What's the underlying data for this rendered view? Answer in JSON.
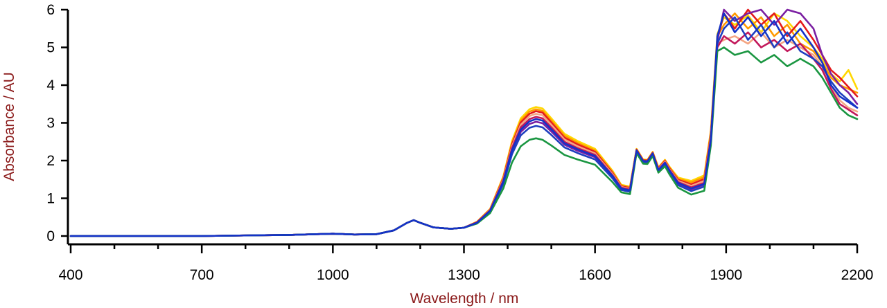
{
  "chart_data": {
    "type": "line",
    "xlabel": "Wavelength / nm",
    "ylabel": "Absorbance / AU",
    "xlim": [
      400,
      2200
    ],
    "ylim": [
      0,
      6
    ],
    "xticks": [
      400,
      700,
      1000,
      1300,
      1600,
      1900,
      2200
    ],
    "yticks": [
      0,
      1,
      2,
      3,
      4,
      5,
      6
    ],
    "grid": false,
    "legend": "none",
    "axis_title_color": "#8b1a1a",
    "x": [
      400,
      500,
      700,
      900,
      1000,
      1050,
      1100,
      1140,
      1170,
      1185,
      1200,
      1230,
      1270,
      1300,
      1330,
      1360,
      1390,
      1410,
      1430,
      1450,
      1465,
      1480,
      1500,
      1530,
      1560,
      1600,
      1640,
      1660,
      1680,
      1695,
      1710,
      1720,
      1732,
      1745,
      1760,
      1770,
      1790,
      1820,
      1850,
      1865,
      1880,
      1895,
      1920,
      1950,
      1980,
      2010,
      2040,
      2070,
      2100,
      2120,
      2140,
      2160,
      2180,
      2200
    ],
    "series": [
      {
        "color": "#ffd700",
        "values": [
          0.0,
          0.0,
          0.0,
          0.03,
          0.06,
          0.04,
          0.05,
          0.15,
          0.35,
          0.42,
          0.35,
          0.23,
          0.19,
          0.22,
          0.38,
          0.72,
          1.58,
          2.52,
          3.12,
          3.36,
          3.42,
          3.38,
          3.12,
          2.71,
          2.52,
          2.31,
          1.73,
          1.36,
          1.31,
          2.31,
          2.03,
          2.02,
          2.23,
          1.82,
          2.02,
          1.84,
          1.55,
          1.46,
          1.61,
          2.8,
          5.35,
          5.8,
          5.6,
          5.85,
          5.4,
          5.9,
          5.7,
          5.3,
          5.0,
          4.7,
          4.3,
          4.1,
          4.4,
          3.9
        ]
      },
      {
        "color": "#ff9900",
        "values": [
          0.0,
          0.0,
          0.0,
          0.03,
          0.06,
          0.04,
          0.05,
          0.15,
          0.35,
          0.42,
          0.35,
          0.23,
          0.19,
          0.22,
          0.37,
          0.71,
          1.55,
          2.47,
          3.06,
          3.3,
          3.36,
          3.32,
          3.06,
          2.66,
          2.47,
          2.27,
          1.7,
          1.34,
          1.29,
          2.3,
          2.02,
          2.01,
          2.22,
          1.81,
          2.01,
          1.82,
          1.52,
          1.42,
          1.56,
          2.75,
          5.3,
          5.6,
          5.9,
          5.5,
          5.8,
          5.3,
          5.6,
          5.1,
          4.9,
          4.6,
          4.2,
          4.0,
          3.9,
          3.8
        ]
      },
      {
        "color": "#e41a1c",
        "values": [
          0.0,
          0.0,
          0.0,
          0.03,
          0.06,
          0.04,
          0.05,
          0.15,
          0.35,
          0.42,
          0.35,
          0.23,
          0.19,
          0.22,
          0.37,
          0.7,
          1.53,
          2.43,
          3.01,
          3.24,
          3.31,
          3.27,
          3.01,
          2.61,
          2.43,
          2.23,
          1.67,
          1.32,
          1.27,
          2.29,
          2.01,
          2.0,
          2.21,
          1.79,
          1.99,
          1.8,
          1.49,
          1.37,
          1.51,
          2.7,
          5.2,
          5.9,
          5.5,
          6.0,
          5.6,
          5.9,
          5.3,
          5.7,
          5.2,
          4.8,
          4.4,
          4.2,
          3.95,
          3.7
        ]
      },
      {
        "color": "#f4a582",
        "values": [
          0.0,
          0.0,
          0.0,
          0.03,
          0.06,
          0.04,
          0.05,
          0.15,
          0.35,
          0.42,
          0.35,
          0.23,
          0.19,
          0.22,
          0.36,
          0.69,
          1.5,
          2.38,
          2.95,
          3.18,
          3.24,
          3.2,
          2.95,
          2.56,
          2.38,
          2.19,
          1.64,
          1.3,
          1.25,
          2.27,
          1.99,
          1.98,
          2.19,
          1.77,
          1.97,
          1.78,
          1.46,
          1.33,
          1.46,
          2.65,
          5.1,
          5.2,
          5.3,
          5.1,
          5.4,
          5.0,
          5.2,
          5.0,
          4.8,
          4.5,
          4.0,
          3.6,
          3.4,
          3.3
        ]
      },
      {
        "color": "#c2185b",
        "values": [
          0.0,
          0.0,
          0.0,
          0.03,
          0.06,
          0.04,
          0.05,
          0.15,
          0.35,
          0.42,
          0.35,
          0.23,
          0.19,
          0.22,
          0.36,
          0.68,
          1.47,
          2.33,
          2.88,
          3.1,
          3.16,
          3.12,
          2.88,
          2.5,
          2.33,
          2.15,
          1.61,
          1.28,
          1.23,
          2.26,
          1.98,
          1.97,
          2.18,
          1.76,
          1.95,
          1.76,
          1.43,
          1.29,
          1.41,
          2.6,
          5.0,
          5.3,
          5.1,
          5.4,
          5.0,
          5.2,
          4.9,
          5.1,
          4.7,
          4.4,
          3.9,
          3.5,
          3.35,
          3.2
        ]
      },
      {
        "color": "#7b1fa2",
        "values": [
          0.0,
          0.0,
          0.0,
          0.03,
          0.06,
          0.04,
          0.05,
          0.15,
          0.35,
          0.42,
          0.35,
          0.23,
          0.19,
          0.22,
          0.35,
          0.66,
          1.42,
          2.24,
          2.76,
          2.97,
          3.03,
          2.99,
          2.77,
          2.42,
          2.26,
          2.09,
          1.57,
          1.25,
          1.2,
          2.25,
          1.97,
          1.96,
          2.17,
          1.74,
          1.93,
          1.73,
          1.39,
          1.24,
          1.36,
          2.55,
          5.2,
          6.0,
          5.7,
          5.9,
          6.0,
          5.6,
          6.0,
          5.9,
          5.5,
          4.8,
          4.3,
          4.0,
          3.8,
          3.5
        ]
      },
      {
        "color": "#1f3fbf",
        "values": [
          0.0,
          0.0,
          0.0,
          0.03,
          0.06,
          0.04,
          0.05,
          0.15,
          0.35,
          0.42,
          0.35,
          0.23,
          0.19,
          0.22,
          0.35,
          0.65,
          1.38,
          2.17,
          2.67,
          2.87,
          2.92,
          2.88,
          2.68,
          2.35,
          2.2,
          2.03,
          1.53,
          1.22,
          1.17,
          2.23,
          1.95,
          1.94,
          2.15,
          1.72,
          1.9,
          1.7,
          1.35,
          1.19,
          1.31,
          2.5,
          5.1,
          5.5,
          5.8,
          5.2,
          5.6,
          5.0,
          5.4,
          4.9,
          4.7,
          4.5,
          4.1,
          3.8,
          3.6,
          3.4
        ]
      },
      {
        "color": "#1a9641",
        "values": [
          0.0,
          0.0,
          0.0,
          0.03,
          0.06,
          0.04,
          0.05,
          0.15,
          0.35,
          0.42,
          0.35,
          0.23,
          0.19,
          0.22,
          0.33,
          0.61,
          1.26,
          1.95,
          2.38,
          2.55,
          2.59,
          2.55,
          2.4,
          2.15,
          2.03,
          1.89,
          1.43,
          1.16,
          1.11,
          2.2,
          1.92,
          1.91,
          2.12,
          1.68,
          1.85,
          1.64,
          1.28,
          1.1,
          1.2,
          2.4,
          4.9,
          5.0,
          4.8,
          4.9,
          4.6,
          4.8,
          4.5,
          4.7,
          4.5,
          4.2,
          3.8,
          3.4,
          3.2,
          3.1
        ]
      },
      {
        "color": "#1432c8",
        "values": [
          0.0,
          0.0,
          0.0,
          0.03,
          0.06,
          0.04,
          0.05,
          0.15,
          0.35,
          0.42,
          0.35,
          0.23,
          0.19,
          0.22,
          0.35,
          0.67,
          1.44,
          2.28,
          2.82,
          3.04,
          3.1,
          3.06,
          2.83,
          2.46,
          2.3,
          2.12,
          1.59,
          1.26,
          1.21,
          2.27,
          1.99,
          1.98,
          2.19,
          1.75,
          1.94,
          1.74,
          1.41,
          1.26,
          1.38,
          2.55,
          5.3,
          5.9,
          5.4,
          5.8,
          5.3,
          5.7,
          5.1,
          5.5,
          5.0,
          4.6,
          4.0,
          3.7,
          3.55,
          3.4
        ]
      }
    ]
  }
}
